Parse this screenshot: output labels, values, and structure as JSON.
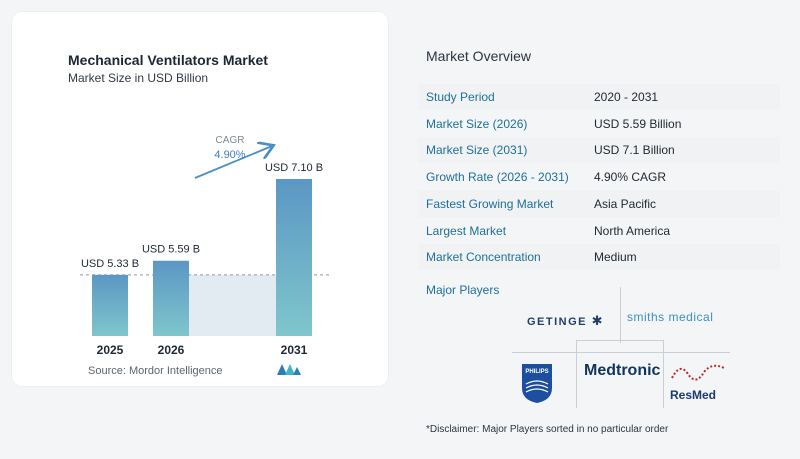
{
  "chart": {
    "title": "Mechanical Ventilators Market",
    "subtitle": "Market Size in USD Billion",
    "source": "Source:  Mordor Intelligence",
    "cagr_label": "CAGR",
    "cagr_value": "4.90%"
  },
  "chart_data": {
    "type": "bar",
    "categories": [
      "2025",
      "2026",
      "2031"
    ],
    "values": [
      5.33,
      5.59,
      7.1
    ],
    "data_labels": [
      "USD 5.33 B",
      "USD 5.59 B",
      "USD 7.10 B"
    ],
    "title": "Mechanical Ventilators Market",
    "subtitle": "Market Size in USD Billion",
    "xlabel": "",
    "ylabel": "",
    "annotations": [
      "CAGR",
      "4.90%"
    ],
    "grid": false,
    "colors": {
      "bar_top": "#5b97c4",
      "bar_bottom": "#7fc6cc",
      "projection_band": "#e3ebf2",
      "reference_line": "#8a96a3",
      "arrow": "#4a8fc4"
    }
  },
  "overview": {
    "title": "Market Overview",
    "rows": [
      {
        "label": "Study Period",
        "value": "2020 - 2031"
      },
      {
        "label": "Market Size (2026)",
        "value": "USD 5.59 Billion"
      },
      {
        "label": "Market Size (2031)",
        "value": "USD 7.1 Billion"
      },
      {
        "label": "Growth Rate (2026 - 2031)",
        "value": "4.90% CAGR"
      },
      {
        "label": "Fastest Growing Market",
        "value": "Asia Pacific"
      },
      {
        "label": "Largest Market",
        "value": "North America"
      },
      {
        "label": "Market Concentration",
        "value": "Medium"
      }
    ],
    "players_title": "Major Players",
    "players": [
      "GETINGE",
      "smiths medical",
      "PHILIPS",
      "Medtronic",
      "ResMed"
    ],
    "disclaimer": "*Disclaimer: Major Players sorted in no particular order"
  },
  "colors": {
    "accent": "#1f6f98",
    "row_shade": "#f0f2f4"
  }
}
